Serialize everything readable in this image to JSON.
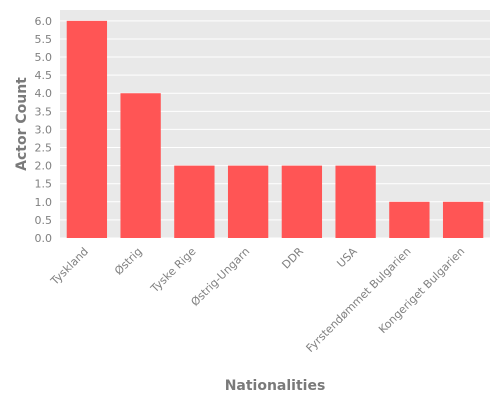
{
  "chart_data": {
    "type": "bar",
    "categories": [
      "Tyskland",
      "Østrig",
      "Tyske Rige",
      "Østrig-Ungarn",
      "DDR",
      "USA",
      "Fyrstendømmet Bulgarien",
      "Kongeriget Bulgarien"
    ],
    "values": [
      6,
      4,
      2,
      2,
      2,
      2,
      1,
      1
    ],
    "xlabel": "Nationalities",
    "ylabel": "Actor Count",
    "ylim": [
      0,
      6.3
    ],
    "yticks": [
      "0.0",
      "0.5",
      "1.0",
      "1.5",
      "2.0",
      "2.5",
      "3.0",
      "3.5",
      "4.0",
      "4.5",
      "5.0",
      "5.5",
      "6.0"
    ],
    "grid": true,
    "colors": {
      "bar": "#ff5555",
      "plot_bg": "#e9e9e9",
      "grid": "#ffffff"
    }
  }
}
